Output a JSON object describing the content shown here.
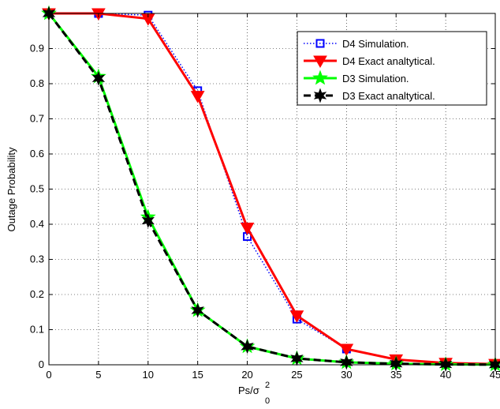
{
  "chart_data": {
    "type": "line",
    "title": "",
    "xlabel": "Ps/σ",
    "xlabel_sup": "2",
    "xlabel_sub": "0",
    "ylabel": "Outage Probability",
    "xlim": [
      0,
      45
    ],
    "ylim": [
      0,
      1
    ],
    "x_ticks": [
      0,
      5,
      10,
      15,
      20,
      25,
      30,
      35,
      40,
      45
    ],
    "y_ticks": [
      0,
      0.1,
      0.2,
      0.3,
      0.4,
      0.5,
      0.6,
      0.7,
      0.8,
      0.9,
      1
    ],
    "y_tick_labels": [
      "0",
      "0.1",
      "0.2",
      "0.3",
      "0.4",
      "0.5",
      "0.6",
      "0.7",
      "0.8",
      "0.9",
      ""
    ],
    "grid": true,
    "legend_position": "top-right",
    "x": [
      0,
      5,
      10,
      15,
      20,
      25,
      30,
      35,
      40,
      45
    ],
    "series": [
      {
        "name": "D4 Simulation.",
        "values": [
          1.0,
          1.0,
          0.995,
          0.78,
          0.365,
          0.13,
          0.045,
          0.015,
          0.005,
          0.002
        ],
        "color": "#0000ff",
        "line": "dotted",
        "marker": "square"
      },
      {
        "name": "D4 Exact analtytical.",
        "values": [
          1.0,
          1.0,
          0.985,
          0.765,
          0.39,
          0.14,
          0.045,
          0.015,
          0.005,
          0.002
        ],
        "color": "#ff0000",
        "line": "solid",
        "marker": "triangle-down"
      },
      {
        "name": "D3 Simulation.",
        "values": [
          1.0,
          0.82,
          0.42,
          0.155,
          0.052,
          0.018,
          0.007,
          0.003,
          0.001,
          0.0005
        ],
        "color": "#00ff00",
        "line": "solid",
        "marker": "star"
      },
      {
        "name": "D3 Exact analtytical.",
        "values": [
          1.0,
          0.815,
          0.41,
          0.155,
          0.052,
          0.018,
          0.007,
          0.003,
          0.001,
          0.0005
        ],
        "color": "#000000",
        "line": "dashed",
        "marker": "hexagram"
      }
    ]
  }
}
